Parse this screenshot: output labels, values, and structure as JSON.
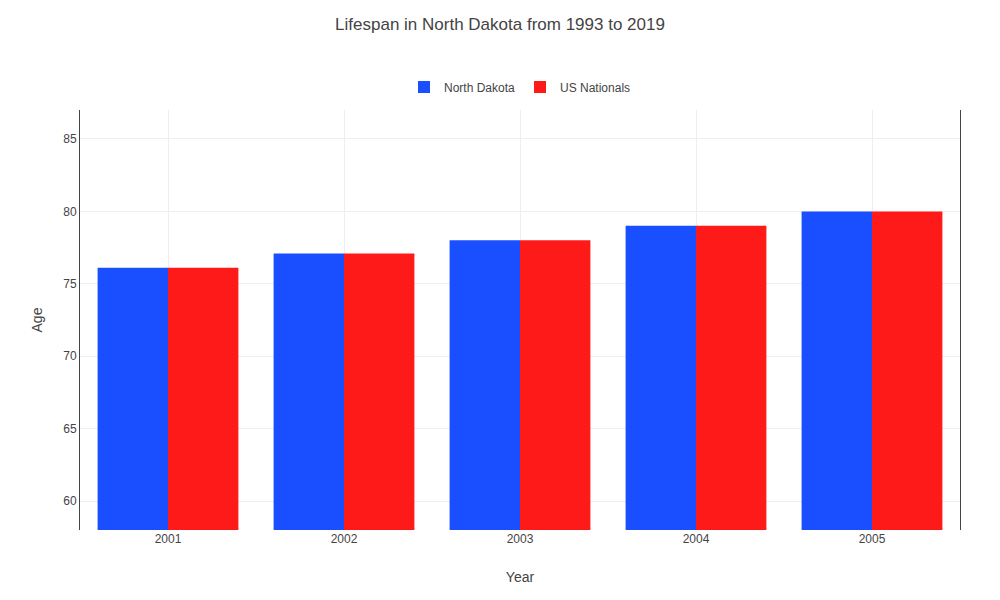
{
  "chart_data": {
    "type": "bar",
    "title": "Lifespan in North Dakota from 1993 to 2019",
    "xlabel": "Year",
    "ylabel": "Age",
    "categories": [
      "2001",
      "2002",
      "2003",
      "2004",
      "2005"
    ],
    "series": [
      {
        "name": "North Dakota",
        "color": "#1a4fff",
        "values": [
          76.1,
          77.1,
          78.0,
          79.0,
          80.0
        ]
      },
      {
        "name": "US Nationals",
        "color": "#ff1a1a",
        "values": [
          76.1,
          77.1,
          78.0,
          79.0,
          80.0
        ]
      }
    ],
    "ylim": [
      58,
      87
    ],
    "yticks": [
      60,
      65,
      70,
      75,
      80,
      85
    ],
    "grid": true,
    "legend": "top"
  }
}
